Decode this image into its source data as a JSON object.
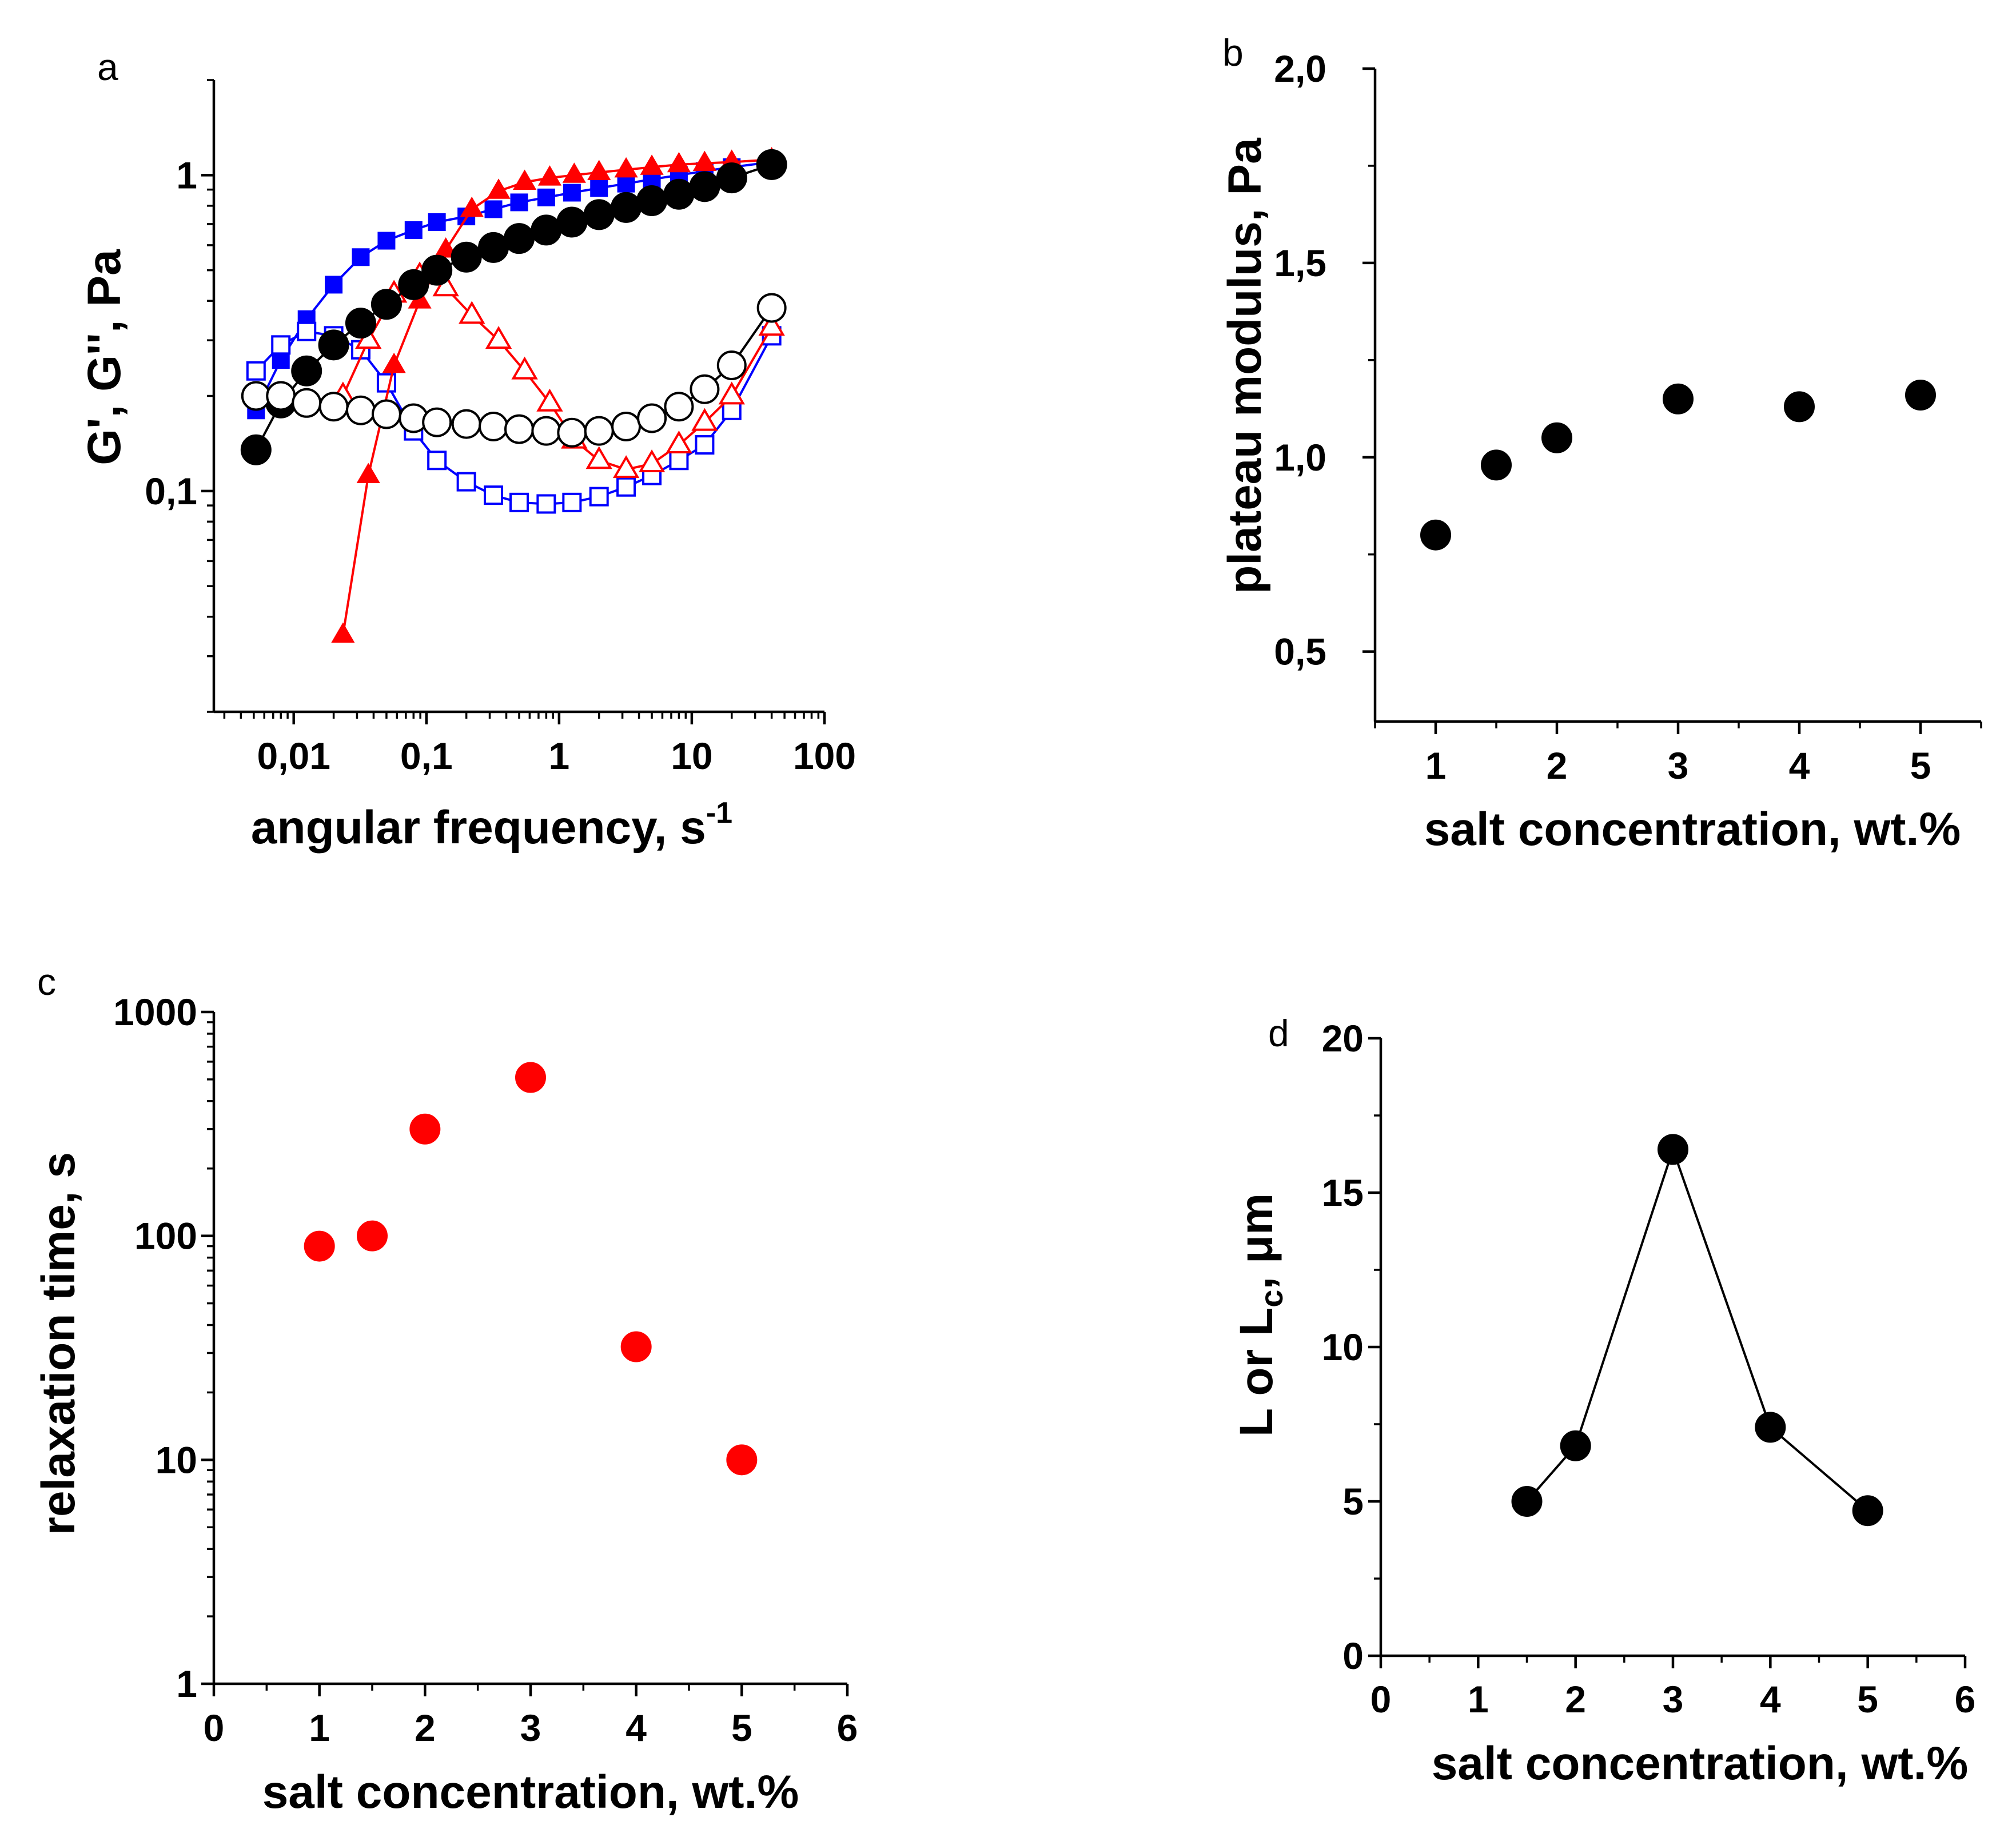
{
  "figure": {
    "panels": {
      "a": "a",
      "b": "b",
      "c": "c",
      "d": "d"
    }
  },
  "chart_data": [
    {
      "id": "a",
      "type": "line",
      "scale": "log-log",
      "xlabel": "angular frequency, s",
      "xlabel_superscript": "-1",
      "ylabel": "G', G'', Pa",
      "xlim": [
        0.0025,
        100
      ],
      "ylim": [
        0.02,
        2
      ],
      "xticks": [
        {
          "v": 0.01,
          "label": "0,01"
        },
        {
          "v": 0.1,
          "label": "0,1"
        },
        {
          "v": 1,
          "label": "1"
        },
        {
          "v": 10,
          "label": "10"
        },
        {
          "v": 100,
          "label": "100"
        }
      ],
      "yticks": [
        {
          "v": 0.1,
          "label": "0,1"
        },
        {
          "v": 1,
          "label": "1"
        }
      ],
      "series": [
        {
          "name": "G' (blue squares)",
          "color": "#0000ff",
          "marker": "square",
          "filled": true,
          "x": [
            0.0052,
            0.008,
            0.0125,
            0.02,
            0.032,
            0.05,
            0.08,
            0.12,
            0.2,
            0.32,
            0.5,
            0.8,
            1.25,
            2,
            3.2,
            5,
            8,
            12.5,
            20,
            40
          ],
          "y": [
            0.18,
            0.26,
            0.35,
            0.45,
            0.55,
            0.62,
            0.67,
            0.71,
            0.74,
            0.78,
            0.82,
            0.85,
            0.88,
            0.91,
            0.94,
            0.97,
            1.0,
            1.03,
            1.06,
            1.1
          ]
        },
        {
          "name": "G'' (blue squares)",
          "color": "#0000ff",
          "marker": "square",
          "filled": false,
          "x": [
            0.0052,
            0.008,
            0.0125,
            0.02,
            0.032,
            0.05,
            0.08,
            0.12,
            0.2,
            0.32,
            0.5,
            0.8,
            1.25,
            2,
            3.2,
            5,
            8,
            12.5,
            20,
            40
          ],
          "y": [
            0.24,
            0.29,
            0.32,
            0.31,
            0.28,
            0.22,
            0.155,
            0.125,
            0.107,
            0.097,
            0.092,
            0.091,
            0.092,
            0.096,
            0.103,
            0.112,
            0.125,
            0.14,
            0.18,
            0.31
          ]
        },
        {
          "name": "G' (red triangles)",
          "color": "#ff0000",
          "marker": "triangle",
          "filled": true,
          "x": [
            0.0235,
            0.0365,
            0.057,
            0.089,
            0.14,
            0.22,
            0.35,
            0.55,
            0.85,
            1.3,
            2,
            3.2,
            5,
            8,
            12.5,
            20,
            40
          ],
          "y": [
            0.035,
            0.112,
            0.25,
            0.4,
            0.58,
            0.78,
            0.89,
            0.95,
            0.98,
            1.0,
            1.02,
            1.04,
            1.06,
            1.08,
            1.09,
            1.1,
            1.12
          ]
        },
        {
          "name": "G'' (red triangles)",
          "color": "#ff0000",
          "marker": "triangle",
          "filled": false,
          "x": [
            0.0235,
            0.0365,
            0.057,
            0.089,
            0.14,
            0.22,
            0.35,
            0.55,
            0.85,
            1.3,
            2,
            3.2,
            5,
            8,
            12.5,
            20,
            40
          ],
          "y": [
            0.2,
            0.3,
            0.42,
            0.48,
            0.44,
            0.36,
            0.3,
            0.24,
            0.19,
            0.145,
            0.125,
            0.117,
            0.122,
            0.14,
            0.165,
            0.2,
            0.33
          ]
        },
        {
          "name": "G' (black circles)",
          "color": "#000000",
          "marker": "circle",
          "filled": true,
          "x": [
            0.0052,
            0.008,
            0.0125,
            0.02,
            0.032,
            0.05,
            0.08,
            0.12,
            0.2,
            0.32,
            0.5,
            0.8,
            1.25,
            2,
            3.2,
            5,
            8,
            12.5,
            20,
            40
          ],
          "y": [
            0.135,
            0.19,
            0.24,
            0.29,
            0.34,
            0.39,
            0.45,
            0.5,
            0.55,
            0.59,
            0.63,
            0.67,
            0.71,
            0.75,
            0.79,
            0.83,
            0.87,
            0.92,
            0.98,
            1.08
          ]
        },
        {
          "name": "G'' (black circles)",
          "color": "#000000",
          "marker": "circle",
          "filled": false,
          "x": [
            0.0052,
            0.008,
            0.0125,
            0.02,
            0.032,
            0.05,
            0.08,
            0.12,
            0.2,
            0.32,
            0.5,
            0.8,
            1.25,
            2,
            3.2,
            5,
            8,
            12.5,
            20,
            40
          ],
          "y": [
            0.2,
            0.2,
            0.19,
            0.185,
            0.18,
            0.175,
            0.17,
            0.165,
            0.163,
            0.16,
            0.157,
            0.155,
            0.153,
            0.155,
            0.16,
            0.17,
            0.185,
            0.21,
            0.25,
            0.38
          ]
        }
      ]
    },
    {
      "id": "b",
      "type": "scatter",
      "xlabel": "salt concentration, wt.%",
      "ylabel": "plateau modulus, Pa",
      "xlim": [
        0.5,
        5.5
      ],
      "ylim": [
        0.32,
        2.0
      ],
      "xticks": [
        {
          "v": 1,
          "label": "1"
        },
        {
          "v": 2,
          "label": "2"
        },
        {
          "v": 3,
          "label": "3"
        },
        {
          "v": 4,
          "label": "4"
        },
        {
          "v": 5,
          "label": "5"
        }
      ],
      "yticks": [
        {
          "v": 0.5,
          "label": "0,5"
        },
        {
          "v": 1.0,
          "label": "1,0"
        },
        {
          "v": 1.5,
          "label": "1,5"
        },
        {
          "v": 2.0,
          "label": "2,0"
        }
      ],
      "series": [
        {
          "name": "plateau modulus",
          "color": "#000000",
          "marker": "circle",
          "filled": true,
          "line": false,
          "x": [
            1,
            1.5,
            2,
            3,
            4,
            5
          ],
          "y": [
            0.8,
            0.98,
            1.05,
            1.15,
            1.13,
            1.16
          ]
        }
      ]
    },
    {
      "id": "c",
      "type": "scatter",
      "scale": "log-y",
      "xlabel": "salt concentration, wt.%",
      "ylabel": "relaxation time, s",
      "xlim": [
        0,
        6
      ],
      "ylim": [
        1,
        1000
      ],
      "xticks": [
        {
          "v": 0,
          "label": "0"
        },
        {
          "v": 1,
          "label": "1"
        },
        {
          "v": 2,
          "label": "2"
        },
        {
          "v": 3,
          "label": "3"
        },
        {
          "v": 4,
          "label": "4"
        },
        {
          "v": 5,
          "label": "5"
        },
        {
          "v": 6,
          "label": "6"
        }
      ],
      "yticks": [
        {
          "v": 1,
          "label": "1"
        },
        {
          "v": 10,
          "label": "10"
        },
        {
          "v": 100,
          "label": "100"
        },
        {
          "v": 1000,
          "label": "1000"
        }
      ],
      "series": [
        {
          "name": "relaxation time",
          "color": "#ff0000",
          "marker": "circle",
          "filled": true,
          "line": false,
          "x": [
            1,
            1.5,
            2,
            3,
            4,
            5
          ],
          "y": [
            90,
            100,
            300,
            510,
            32,
            10
          ]
        }
      ]
    },
    {
      "id": "d",
      "type": "line",
      "xlabel": "salt concentration, wt.%",
      "ylabel": "L or L",
      "ylabel_subscript": "c",
      "ylabel_suffix": ", μm",
      "xlim": [
        0,
        6
      ],
      "ylim": [
        0,
        20
      ],
      "xticks": [
        {
          "v": 0,
          "label": "0"
        },
        {
          "v": 1,
          "label": "1"
        },
        {
          "v": 2,
          "label": "2"
        },
        {
          "v": 3,
          "label": "3"
        },
        {
          "v": 4,
          "label": "4"
        },
        {
          "v": 5,
          "label": "5"
        },
        {
          "v": 6,
          "label": "6"
        }
      ],
      "yticks": [
        {
          "v": 0,
          "label": "0"
        },
        {
          "v": 5,
          "label": "5"
        },
        {
          "v": 10,
          "label": "10"
        },
        {
          "v": 15,
          "label": "15"
        },
        {
          "v": 20,
          "label": "20"
        }
      ],
      "series": [
        {
          "name": "L or Lc",
          "color": "#000000",
          "marker": "circle",
          "filled": true,
          "line": true,
          "x": [
            1.5,
            2,
            3,
            4,
            5
          ],
          "y": [
            5.0,
            6.8,
            16.4,
            7.4,
            4.7
          ]
        }
      ]
    }
  ]
}
